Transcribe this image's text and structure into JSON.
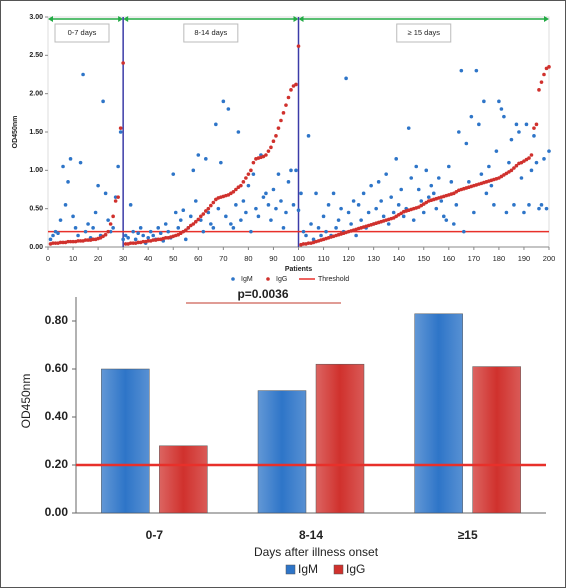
{
  "chart_data": [
    {
      "type": "scatter",
      "xlabel": "Patients",
      "ylabel": "OD450nm",
      "xlim": [
        0,
        200
      ],
      "xticks": [
        0,
        10,
        20,
        30,
        40,
        50,
        60,
        70,
        80,
        90,
        100,
        110,
        120,
        130,
        140,
        150,
        160,
        170,
        180,
        190,
        200
      ],
      "ylim": [
        0,
        3
      ],
      "yticks": [
        {
          "value": 0,
          "label": "0.00"
        },
        {
          "value": 0.5,
          "label": "0.50"
        },
        {
          "value": 1,
          "label": "1.00"
        },
        {
          "value": 1.5,
          "label": "1.50"
        },
        {
          "value": 2,
          "label": "2.00"
        },
        {
          "value": 2.5,
          "label": "2.50"
        },
        {
          "value": 3,
          "label": "3.00"
        }
      ],
      "groups": [
        {
          "label": "0-7 days",
          "range": [
            0,
            30
          ]
        },
        {
          "label": "8-14 days",
          "range": [
            30,
            100
          ]
        },
        {
          "label": "≥ 15 days",
          "range": [
            100,
            200
          ]
        }
      ],
      "threshold": {
        "name": "Threshold",
        "value": 0.2,
        "color": "#e8302a"
      },
      "x": [
        1,
        2,
        3,
        4,
        5,
        6,
        7,
        8,
        9,
        10,
        11,
        12,
        13,
        14,
        15,
        16,
        17,
        18,
        19,
        20,
        21,
        22,
        23,
        24,
        25,
        26,
        27,
        28,
        29,
        30,
        31,
        32,
        33,
        34,
        35,
        36,
        37,
        38,
        39,
        40,
        41,
        42,
        43,
        44,
        45,
        46,
        47,
        48,
        49,
        50,
        51,
        52,
        53,
        54,
        55,
        56,
        57,
        58,
        59,
        60,
        61,
        62,
        63,
        64,
        65,
        66,
        67,
        68,
        69,
        70,
        71,
        72,
        73,
        74,
        75,
        76,
        77,
        78,
        79,
        80,
        81,
        82,
        83,
        84,
        85,
        86,
        87,
        88,
        89,
        90,
        91,
        92,
        93,
        94,
        95,
        96,
        97,
        98,
        99,
        100,
        101,
        102,
        103,
        104,
        105,
        106,
        107,
        108,
        109,
        110,
        111,
        112,
        113,
        114,
        115,
        116,
        117,
        118,
        119,
        120,
        121,
        122,
        123,
        124,
        125,
        126,
        127,
        128,
        129,
        130,
        131,
        132,
        133,
        134,
        135,
        136,
        137,
        138,
        139,
        140,
        141,
        142,
        143,
        144,
        145,
        146,
        147,
        148,
        149,
        150,
        151,
        152,
        153,
        154,
        155,
        156,
        157,
        158,
        159,
        160,
        161,
        162,
        163,
        164,
        165,
        166,
        167,
        168,
        169,
        170,
        171,
        172,
        173,
        174,
        175,
        176,
        177,
        178,
        179,
        180,
        181,
        182,
        183,
        184,
        185,
        186,
        187,
        188,
        189,
        190,
        191,
        192,
        193,
        194,
        195,
        196,
        197,
        198,
        199,
        200
      ],
      "series": [
        {
          "name": "IgM",
          "color": "#2e75c8",
          "values": [
            0.1,
            0.15,
            0.2,
            0.18,
            0.35,
            1.05,
            0.55,
            0.85,
            1.15,
            0.4,
            0.25,
            0.15,
            1.1,
            2.25,
            0.2,
            0.3,
            0.12,
            0.25,
            0.45,
            0.8,
            0.15,
            1.9,
            0.7,
            0.35,
            0.2,
            0.25,
            0.65,
            1.05,
            1.5,
            0.1,
            0.15,
            0.12,
            0.55,
            0.2,
            0.1,
            0.18,
            0.25,
            0.15,
            0.05,
            0.12,
            0.2,
            0.15,
            0.1,
            0.25,
            0.18,
            0.08,
            0.3,
            0.2,
            0.12,
            0.95,
            0.45,
            0.25,
            0.35,
            0.48,
            0.1,
            0.25,
            0.4,
            1.0,
            0.6,
            1.2,
            0.35,
            0.2,
            1.15,
            0.45,
            0.3,
            0.25,
            1.6,
            0.5,
            1.1,
            1.9,
            0.4,
            1.8,
            0.3,
            0.25,
            0.55,
            1.5,
            0.35,
            0.6,
            0.45,
            0.8,
            0.2,
            0.95,
            0.5,
            0.4,
            1.2,
            0.65,
            0.7,
            0.55,
            0.35,
            0.75,
            0.5,
            0.95,
            0.6,
            0.25,
            0.45,
            0.85,
            1.0,
            0.55,
            1.0,
            0.48,
            0.7,
            0.2,
            0.15,
            1.45,
            0.3,
            0.1,
            0.7,
            0.25,
            0.15,
            0.4,
            0.2,
            0.55,
            0.15,
            0.7,
            0.25,
            0.35,
            0.5,
            0.2,
            2.2,
            0.45,
            0.3,
            0.6,
            0.15,
            0.55,
            0.35,
            0.7,
            0.25,
            0.45,
            0.8,
            0.3,
            0.5,
            0.85,
            0.6,
            0.4,
            0.95,
            0.3,
            0.65,
            0.45,
            1.15,
            0.55,
            0.75,
            0.4,
            0.5,
            1.55,
            0.9,
            0.35,
            1.05,
            0.75,
            0.6,
            0.45,
            1.0,
            0.65,
            0.8,
            0.7,
            0.5,
            0.9,
            0.6,
            0.4,
            0.35,
            1.05,
            0.85,
            0.3,
            0.55,
            1.5,
            2.3,
            0.2,
            1.35,
            0.85,
            1.7,
            0.45,
            2.3,
            1.6,
            0.95,
            1.9,
            0.7,
            1.05,
            0.8,
            0.55,
            1.25,
            1.9,
            1.8,
            1.7,
            0.45,
            1.1,
            1.4,
            0.55,
            1.6,
            1.5,
            0.9,
            0.45,
            1.6,
            0.55,
            1.0,
            1.45,
            1.1,
            0.5,
            0.55,
            1.15,
            0.5,
            1.25
          ]
        },
        {
          "name": "IgG",
          "color": "#d0312d",
          "values": [
            0.04,
            0.05,
            0.05,
            0.05,
            0.06,
            0.06,
            0.06,
            0.07,
            0.07,
            0.07,
            0.07,
            0.08,
            0.08,
            0.08,
            0.09,
            0.09,
            0.09,
            0.1,
            0.1,
            0.11,
            0.12,
            0.14,
            0.16,
            0.2,
            0.3,
            0.4,
            0.6,
            0.65,
            1.55,
            2.4,
            0.04,
            0.04,
            0.05,
            0.05,
            0.05,
            0.06,
            0.06,
            0.07,
            0.07,
            0.08,
            0.08,
            0.09,
            0.09,
            0.1,
            0.1,
            0.11,
            0.12,
            0.12,
            0.13,
            0.14,
            0.15,
            0.16,
            0.18,
            0.2,
            0.22,
            0.25,
            0.28,
            0.3,
            0.33,
            0.36,
            0.4,
            0.43,
            0.47,
            0.5,
            0.54,
            0.58,
            0.62,
            0.64,
            0.65,
            0.66,
            0.67,
            0.68,
            0.7,
            0.72,
            0.75,
            0.78,
            0.8,
            0.85,
            0.9,
            0.95,
            1.0,
            1.1,
            1.15,
            1.16,
            1.17,
            1.18,
            1.2,
            1.25,
            1.3,
            1.38,
            1.45,
            1.55,
            1.65,
            1.75,
            1.85,
            1.95,
            2.05,
            2.1,
            2.12,
            2.62,
            0.03,
            0.04,
            0.04,
            0.05,
            0.05,
            0.06,
            0.07,
            0.08,
            0.09,
            0.1,
            0.11,
            0.12,
            0.13,
            0.14,
            0.15,
            0.16,
            0.17,
            0.18,
            0.19,
            0.2,
            0.21,
            0.22,
            0.23,
            0.24,
            0.25,
            0.26,
            0.27,
            0.28,
            0.29,
            0.3,
            0.31,
            0.32,
            0.33,
            0.34,
            0.35,
            0.36,
            0.37,
            0.38,
            0.4,
            0.42,
            0.44,
            0.46,
            0.47,
            0.48,
            0.49,
            0.5,
            0.51,
            0.52,
            0.54,
            0.56,
            0.58,
            0.6,
            0.61,
            0.62,
            0.63,
            0.64,
            0.65,
            0.66,
            0.67,
            0.68,
            0.69,
            0.7,
            0.72,
            0.74,
            0.75,
            0.76,
            0.77,
            0.78,
            0.79,
            0.8,
            0.81,
            0.82,
            0.83,
            0.84,
            0.85,
            0.86,
            0.87,
            0.88,
            0.89,
            0.9,
            0.92,
            0.94,
            0.96,
            0.98,
            1.0,
            1.03,
            1.06,
            1.09,
            1.1,
            1.12,
            1.14,
            1.16,
            1.2,
            1.55,
            1.6,
            2.05,
            2.15,
            2.25,
            2.33,
            2.35
          ]
        }
      ]
    },
    {
      "type": "bar",
      "xlabel": "Days after illness onset",
      "ylabel": "OD450nm",
      "annotation": "p=0.0036",
      "categories": [
        "0-7",
        "8-14",
        "≥15"
      ],
      "ylim": [
        0,
        0.9
      ],
      "yticks": [
        {
          "value": 0,
          "label": "0.00"
        },
        {
          "value": 0.2,
          "label": "0.20"
        },
        {
          "value": 0.4,
          "label": "0.40"
        },
        {
          "value": 0.6,
          "label": "0.60"
        },
        {
          "value": 0.8,
          "label": "0.80"
        }
      ],
      "threshold": {
        "value": 0.2,
        "color": "#e8302a"
      },
      "series": [
        {
          "name": "IgM",
          "color": "#2e75c8",
          "values": [
            0.6,
            0.51,
            0.83
          ]
        },
        {
          "name": "IgG",
          "color": "#d0312d",
          "values": [
            0.28,
            0.62,
            0.61
          ]
        }
      ]
    }
  ]
}
